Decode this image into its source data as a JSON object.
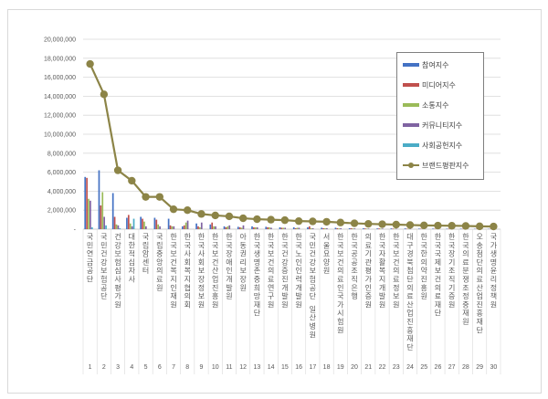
{
  "chart_data": {
    "type": "bar+line",
    "title": "",
    "xlabel": "",
    "ylabel": "",
    "ylim": [
      0,
      20000000
    ],
    "yticks": [
      "-",
      "2,000,000",
      "4,000,000",
      "6,000,000",
      "8,000,000",
      "10,000,000",
      "12,000,000",
      "14,000,000",
      "16,000,000",
      "18,000,000",
      "20,000,000"
    ],
    "grid": true,
    "legend_position": "right-inside",
    "ranks": [
      "1",
      "2",
      "3",
      "4",
      "5",
      "6",
      "7",
      "8",
      "9",
      "10",
      "11",
      "12",
      "13",
      "14",
      "15",
      "16",
      "17",
      "18",
      "19",
      "20",
      "21",
      "22",
      "23",
      "24",
      "25",
      "26",
      "27",
      "28",
      "29",
      "30"
    ],
    "categories": [
      "국민연금공단",
      "국민건강보험공단",
      "건강보험심사평가원",
      "대한적십자사",
      "국립암센터",
      "국립중앙의료원",
      "한국보건복지인재원",
      "한국사회복지협의회",
      "한국사회보장정보원",
      "한국보건산업진흥원",
      "한국장애인개발원",
      "아동권리보장원",
      "한국생명존중희망재단",
      "한국보건의료연구원",
      "한국건강증진개발원",
      "한국노인인력개발원",
      "국민건강보험공단 일산병원",
      "서울요양원",
      "한국보건의료인국가시험원",
      "한국공공조직은행",
      "의료기관평가인증원",
      "한국자활복지개발원",
      "한국보건의료정보원",
      "대구경북첨단의료산업진흥재단",
      "한국한의약진흥원",
      "한국국제보건의료재단",
      "한국장기조직기증원",
      "한국의료분쟁조정중재원",
      "오송첨단의료산업진흥재단",
      "국가생명윤리정책원"
    ],
    "series": [
      {
        "name": "참여지수",
        "color": "#4472c4",
        "type": "bar",
        "values": [
          5500000,
          6200000,
          3800000,
          1200000,
          1300000,
          1200000,
          1100000,
          300000,
          600000,
          500000,
          300000,
          250000,
          300000,
          250000,
          200000,
          200000,
          200000,
          150000,
          150000,
          100000,
          100000,
          80000,
          80000,
          80000,
          60000,
          60000,
          50000,
          50000,
          40000,
          30000
        ]
      },
      {
        "name": "미디어지수",
        "color": "#c0504d",
        "type": "bar",
        "values": [
          5400000,
          2500000,
          1300000,
          1500000,
          1100000,
          1000000,
          400000,
          400000,
          300000,
          700000,
          200000,
          200000,
          200000,
          200000,
          150000,
          100000,
          300000,
          100000,
          100000,
          100000,
          80000,
          80000,
          60000,
          50000,
          50000,
          40000,
          40000,
          30000,
          30000,
          20000
        ]
      },
      {
        "name": "소통지수",
        "color": "#9bbb59",
        "type": "bar",
        "values": [
          3200000,
          3900000,
          500000,
          600000,
          800000,
          500000,
          300000,
          700000,
          200000,
          300000,
          300000,
          150000,
          200000,
          200000,
          150000,
          150000,
          100000,
          100000,
          80000,
          80000,
          60000,
          60000,
          50000,
          40000,
          40000,
          30000,
          30000,
          20000,
          20000,
          20000
        ]
      },
      {
        "name": "커뮤니티지수",
        "color": "#8064a2",
        "type": "bar",
        "values": [
          3000000,
          1300000,
          400000,
          300000,
          300000,
          300000,
          300000,
          900000,
          700000,
          300000,
          400000,
          400000,
          200000,
          150000,
          150000,
          150000,
          100000,
          100000,
          100000,
          80000,
          60000,
          60000,
          50000,
          40000,
          40000,
          30000,
          30000,
          20000,
          20000,
          20000
        ]
      },
      {
        "name": "사회공헌지수",
        "color": "#4bacc6",
        "type": "bar",
        "values": [
          200000,
          400000,
          100000,
          1100000,
          0,
          0,
          0,
          0,
          0,
          0,
          0,
          0,
          0,
          0,
          0,
          0,
          0,
          0,
          0,
          0,
          0,
          0,
          0,
          0,
          0,
          0,
          0,
          0,
          0,
          0
        ]
      },
      {
        "name": "브랜드평판지수",
        "color": "#8c8447",
        "type": "line",
        "values": [
          17400000,
          14200000,
          6200000,
          5100000,
          3400000,
          3400000,
          2100000,
          2000000,
          1600000,
          1450000,
          1350000,
          1150000,
          1050000,
          1000000,
          950000,
          850000,
          820000,
          780000,
          700000,
          620000,
          560000,
          520000,
          480000,
          440000,
          400000,
          380000,
          360000,
          340000,
          300000,
          280000
        ]
      }
    ]
  }
}
